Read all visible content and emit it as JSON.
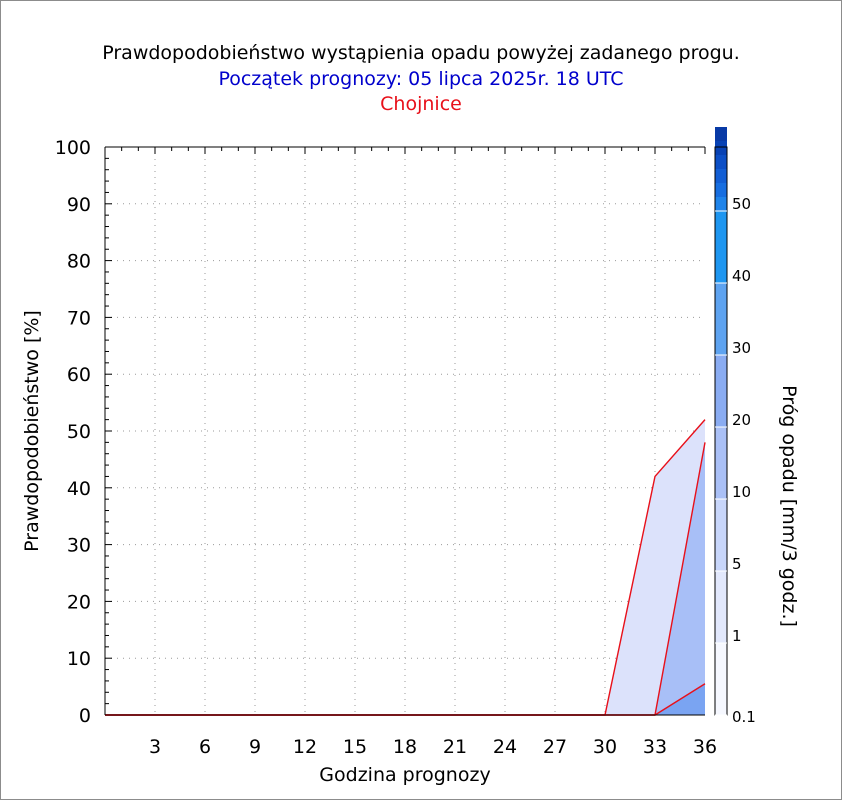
{
  "chart_data": {
    "type": "area",
    "title": "Prawdopodobieństwo wystąpienia opadu powyżej zadanego progu.",
    "subtitle": "Początek prognozy: 05 lipca 2025r. 18 UTC",
    "station": "Chojnice",
    "xlabel": "Godzina prognozy",
    "ylabel": "Prawdopodobieństwo [%]",
    "colorbar_label": "Próg opadu [mm/3 godz.]",
    "xlim": [
      0,
      36
    ],
    "ylim": [
      0,
      100
    ],
    "x_ticks": [
      3,
      6,
      9,
      12,
      15,
      18,
      21,
      24,
      27,
      30,
      33,
      36
    ],
    "y_ticks": [
      0,
      10,
      20,
      30,
      40,
      50,
      60,
      70,
      80,
      90,
      100
    ],
    "grid": true,
    "x": [
      0,
      3,
      6,
      9,
      12,
      15,
      18,
      21,
      24,
      27,
      30,
      33,
      36
    ],
    "series": [
      {
        "name": "0.1",
        "color": "#dce2fb",
        "values": [
          0,
          0,
          0,
          0,
          0,
          0,
          0,
          0,
          0,
          0,
          0,
          42,
          52
        ]
      },
      {
        "name": "1",
        "color": "#a8bff7",
        "values": [
          0,
          0,
          0,
          0,
          0,
          0,
          0,
          0,
          0,
          0,
          0,
          0,
          48
        ]
      },
      {
        "name": "5",
        "color": "#7aa4f2",
        "values": [
          0,
          0,
          0,
          0,
          0,
          0,
          0,
          0,
          0,
          0,
          0,
          0,
          5.5
        ]
      }
    ],
    "colorbar": {
      "tick_labels": [
        "0.1",
        "1",
        "5",
        "10",
        "20",
        "30",
        "40",
        "50"
      ],
      "colors": [
        "#f6f8ff",
        "#e2e8fc",
        "#c8d6fa",
        "#aac0f6",
        "#8aacf2",
        "#5ea3f0",
        "#1e96f0",
        "#1f84ea",
        "#176ee0",
        "#125ed4",
        "#0c4fc6",
        "#0842b4",
        "#083aa6"
      ]
    },
    "outline_color": "#e8101a"
  }
}
